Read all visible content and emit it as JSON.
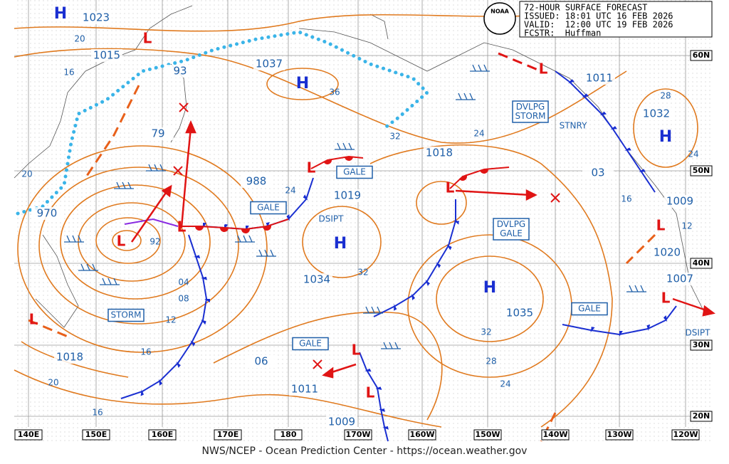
{
  "header": {
    "title": "72-HOUR SURFACE FORECAST",
    "issued": "ISSUED: 18:01 UTC 16 FEB 2026",
    "valid": "VALID:  12:00 UTC 19 FEB 2026",
    "forecaster": "FCSTR:  Huffman"
  },
  "logo": "NOAA",
  "footer": "NWS/NCEP - Ocean Prediction Center - https://ocean.weather.gov",
  "longitudes": [
    "140E",
    "150E",
    "160E",
    "170E",
    "180",
    "170W",
    "160W",
    "150W",
    "140W",
    "130W",
    "120W"
  ],
  "latitudes": [
    "60N",
    "50N",
    "40N",
    "30N",
    "20N"
  ],
  "high_symbol": "H",
  "low_symbol": "L",
  "pressures": [
    "1023",
    "1015",
    "93",
    "1037",
    "79",
    "988",
    "1019",
    "1018",
    "03",
    "1011",
    "1032",
    "1009",
    "1020",
    "1007",
    "1034",
    "1035",
    "06",
    "1011",
    "1009",
    "970",
    "1018"
  ],
  "isobar_labels": [
    "20",
    "16",
    "36",
    "32",
    "24",
    "28",
    "24",
    "16",
    "12",
    "24",
    "32",
    "92",
    "04",
    "08",
    "12",
    "16",
    "20",
    "16",
    "32",
    "28",
    "24",
    "20"
  ],
  "warnings": [
    [
      "STORM"
    ],
    [
      "GALE"
    ],
    [
      "GALE"
    ],
    [
      "DVLPG",
      "STORM"
    ],
    [
      "DVLPG",
      "GALE"
    ],
    [
      "GALE"
    ],
    [
      "GALE"
    ]
  ],
  "front_labels": [
    "DSIPT",
    "STNRY",
    "DSIPT"
  ]
}
